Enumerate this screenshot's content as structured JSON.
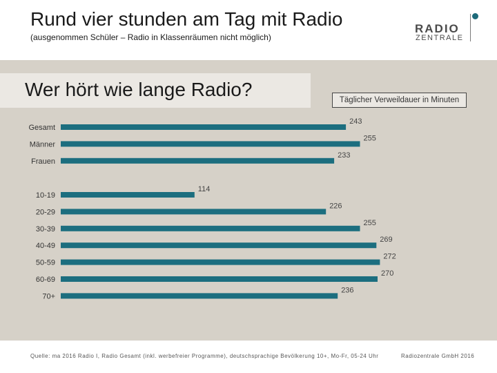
{
  "header": {
    "title": "Rund vier stunden am Tag mit Radio",
    "subtitle": "(ausgenommen Schüler – Radio in Klassenräumen nicht möglich)"
  },
  "logo": {
    "line1": "RADIO",
    "line2": "ZENTRALE"
  },
  "colors": {
    "bar": "#1c6e7f",
    "panel": "#d6d1c8"
  },
  "chart_data": {
    "type": "bar",
    "orientation": "horizontal",
    "title": "Wer hört wie lange Radio?",
    "unit_label": "Täglicher Verweildauer in Minuten",
    "groups": [
      {
        "categories": [
          "Gesamt",
          "Männer",
          "Frauen"
        ],
        "values": [
          243,
          255,
          233
        ]
      },
      {
        "categories": [
          "10-19",
          "20-29",
          "30-39",
          "40-49",
          "50-59",
          "60-69",
          "70+"
        ],
        "values": [
          114,
          226,
          255,
          269,
          272,
          270,
          236
        ]
      }
    ]
  },
  "footer": {
    "source": "Quelle: ma 2016 Radio I, Radio Gesamt (inkl. werbefreier Programme), deutschsprachige Bevölkerung 10+, Mo-Fr, 05-24 Uhr",
    "copyright": "Radiozentrale GmbH 2016"
  }
}
